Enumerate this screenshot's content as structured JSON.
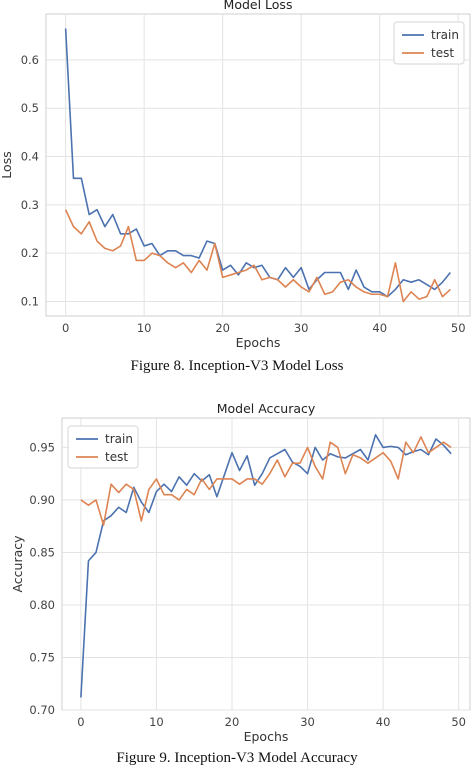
{
  "chart_data": [
    {
      "type": "line",
      "title": "Model Loss",
      "xlabel": "Epochs",
      "ylabel": "Loss",
      "xlim": [
        -2.5,
        51.5
      ],
      "ylim": [
        0.07,
        0.695
      ],
      "xticks": [
        "0",
        "10",
        "20",
        "30",
        "40",
        "50"
      ],
      "yticks": [
        "0.1",
        "0.2",
        "0.3",
        "0.4",
        "0.5",
        "0.6"
      ],
      "legend": "top-right",
      "grid": true,
      "x": [
        0,
        1,
        2,
        3,
        4,
        5,
        6,
        7,
        8,
        9,
        10,
        11,
        12,
        13,
        14,
        15,
        16,
        17,
        18,
        19,
        20,
        21,
        22,
        23,
        24,
        25,
        26,
        27,
        28,
        29,
        30,
        31,
        32,
        33,
        34,
        35,
        36,
        37,
        38,
        39,
        40,
        41,
        42,
        43,
        44,
        45,
        46,
        47,
        48,
        49
      ],
      "series": [
        {
          "name": "train",
          "color": "#4C72B0",
          "values": [
            0.665,
            0.355,
            0.355,
            0.28,
            0.29,
            0.255,
            0.28,
            0.24,
            0.24,
            0.25,
            0.215,
            0.22,
            0.195,
            0.205,
            0.205,
            0.195,
            0.195,
            0.19,
            0.225,
            0.22,
            0.165,
            0.175,
            0.155,
            0.18,
            0.17,
            0.175,
            0.15,
            0.145,
            0.17,
            0.15,
            0.17,
            0.125,
            0.145,
            0.16,
            0.16,
            0.16,
            0.125,
            0.165,
            0.13,
            0.12,
            0.12,
            0.11,
            0.125,
            0.145,
            0.14,
            0.145,
            0.135,
            0.125,
            0.14,
            0.16
          ]
        },
        {
          "name": "test",
          "color": "#DD8452",
          "values": [
            0.29,
            0.255,
            0.24,
            0.265,
            0.225,
            0.21,
            0.205,
            0.215,
            0.255,
            0.185,
            0.185,
            0.2,
            0.195,
            0.18,
            0.17,
            0.18,
            0.16,
            0.185,
            0.165,
            0.22,
            0.15,
            0.155,
            0.16,
            0.165,
            0.175,
            0.145,
            0.15,
            0.145,
            0.13,
            0.145,
            0.13,
            0.12,
            0.15,
            0.115,
            0.12,
            0.14,
            0.145,
            0.13,
            0.12,
            0.115,
            0.115,
            0.11,
            0.18,
            0.1,
            0.12,
            0.105,
            0.11,
            0.145,
            0.11,
            0.125
          ]
        }
      ]
    },
    {
      "type": "line",
      "title": "Model Accuracy",
      "xlabel": "Epochs",
      "ylabel": "Accuracy",
      "xlim": [
        -2.5,
        51.5
      ],
      "ylim": [
        0.7,
        0.978
      ],
      "xticks": [
        "0",
        "10",
        "20",
        "30",
        "40",
        "50"
      ],
      "yticks": [
        "0.70",
        "0.75",
        "0.80",
        "0.85",
        "0.90",
        "0.95"
      ],
      "legend": "top-left",
      "grid": true,
      "x": [
        0,
        1,
        2,
        3,
        4,
        5,
        6,
        7,
        8,
        9,
        10,
        11,
        12,
        13,
        14,
        15,
        16,
        17,
        18,
        19,
        20,
        21,
        22,
        23,
        24,
        25,
        26,
        27,
        28,
        29,
        30,
        31,
        32,
        33,
        34,
        35,
        36,
        37,
        38,
        39,
        40,
        41,
        42,
        43,
        44,
        45,
        46,
        47,
        48,
        49
      ],
      "series": [
        {
          "name": "train",
          "color": "#4C72B0",
          "values": [
            0.712,
            0.842,
            0.85,
            0.88,
            0.885,
            0.893,
            0.888,
            0.912,
            0.898,
            0.888,
            0.908,
            0.915,
            0.908,
            0.922,
            0.914,
            0.925,
            0.918,
            0.924,
            0.903,
            0.924,
            0.945,
            0.928,
            0.942,
            0.914,
            0.925,
            0.94,
            0.944,
            0.948,
            0.936,
            0.932,
            0.925,
            0.95,
            0.938,
            0.944,
            0.941,
            0.94,
            0.944,
            0.948,
            0.938,
            0.962,
            0.95,
            0.951,
            0.95,
            0.943,
            0.946,
            0.948,
            0.943,
            0.958,
            0.952,
            0.944
          ]
        },
        {
          "name": "test",
          "color": "#DD8452",
          "values": [
            0.9,
            0.895,
            0.9,
            0.876,
            0.915,
            0.907,
            0.915,
            0.91,
            0.88,
            0.91,
            0.92,
            0.905,
            0.905,
            0.9,
            0.91,
            0.905,
            0.92,
            0.91,
            0.92,
            0.92,
            0.92,
            0.915,
            0.92,
            0.92,
            0.915,
            0.925,
            0.938,
            0.922,
            0.935,
            0.935,
            0.95,
            0.932,
            0.92,
            0.955,
            0.95,
            0.925,
            0.943,
            0.94,
            0.935,
            0.94,
            0.945,
            0.937,
            0.92,
            0.955,
            0.945,
            0.96,
            0.945,
            0.95,
            0.955,
            0.95
          ]
        }
      ]
    }
  ],
  "captions": {
    "loss": "Figure 8. Inception-V3 Model Loss",
    "accuracy": "Figure 9. Inception-V3 Model Accuracy"
  }
}
